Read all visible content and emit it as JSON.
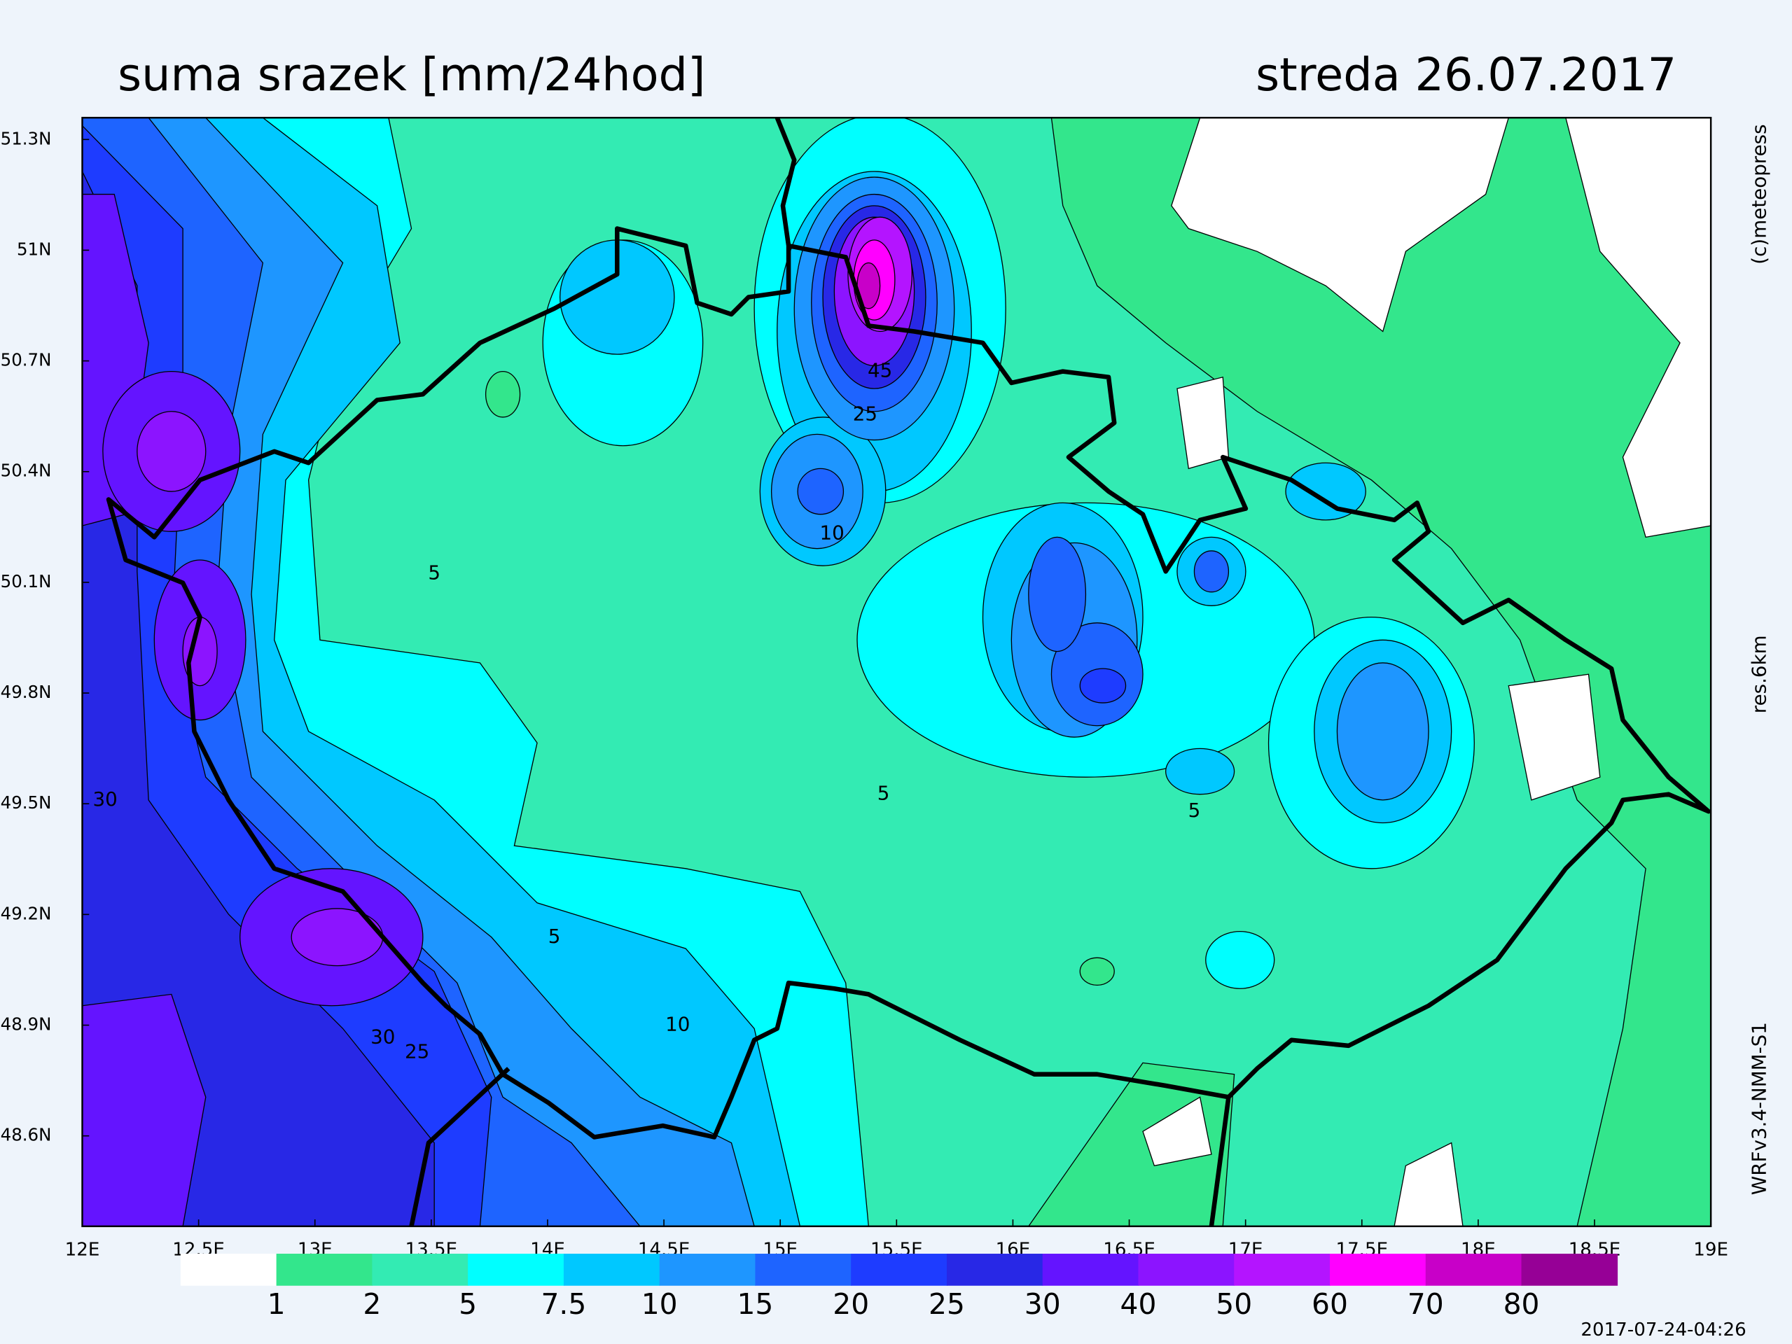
{
  "header": {
    "title": "suma srazek [mm/24hod]",
    "date": "streda 26.07.2017"
  },
  "map": {
    "lonlim": [
      12,
      19
    ],
    "latlim": [
      48.355,
      51.359
    ],
    "lon_ticks": [
      {
        "value": 12,
        "label": "12E"
      },
      {
        "value": 12.5,
        "label": "12.5E"
      },
      {
        "value": 13,
        "label": "13E"
      },
      {
        "value": 13.5,
        "label": "13.5E"
      },
      {
        "value": 14,
        "label": "14E"
      },
      {
        "value": 14.5,
        "label": "14.5E"
      },
      {
        "value": 15,
        "label": "15E"
      },
      {
        "value": 15.5,
        "label": "15.5E"
      },
      {
        "value": 16,
        "label": "16E"
      },
      {
        "value": 16.5,
        "label": "16.5E"
      },
      {
        "value": 17,
        "label": "17E"
      },
      {
        "value": 17.5,
        "label": "17.5E"
      },
      {
        "value": 18,
        "label": "18E"
      },
      {
        "value": 18.5,
        "label": "18.5E"
      },
      {
        "value": 19,
        "label": "19E"
      }
    ],
    "lat_ticks": [
      {
        "value": 51.3,
        "label": "51.3N"
      },
      {
        "value": 51,
        "label": "51N"
      },
      {
        "value": 50.7,
        "label": "50.7N"
      },
      {
        "value": 50.4,
        "label": "50.4N"
      },
      {
        "value": 50.1,
        "label": "50.1N"
      },
      {
        "value": 49.8,
        "label": "49.8N"
      },
      {
        "value": 49.5,
        "label": "49.5N"
      },
      {
        "value": 49.2,
        "label": "49.2N"
      },
      {
        "value": 48.9,
        "label": "48.9N"
      },
      {
        "value": 48.6,
        "label": "48.6N"
      }
    ],
    "contour_labels": [
      "5",
      "5",
      "5",
      "5",
      "10",
      "10",
      "25",
      "25",
      "45",
      "30",
      "30"
    ]
  },
  "legend": {
    "bounds": [
      1,
      2,
      5,
      7.5,
      10,
      15,
      20,
      25,
      30,
      40,
      50,
      60,
      70,
      80
    ],
    "colors": [
      "#ffffff",
      "#33e68c",
      "#33ebb3",
      "#00ffff",
      "#00c8ff",
      "#1e96ff",
      "#1e64ff",
      "#1e3cff",
      "#2828e6",
      "#6414ff",
      "#8c14ff",
      "#b414ff",
      "#ff00ff",
      "#c800c8",
      "#960096"
    ]
  },
  "side_notes": [
    "(c)meteopress",
    "res.6km",
    "WRFv3.4-NMM-S1"
  ],
  "timestamp": "2017-07-24-04:26"
}
